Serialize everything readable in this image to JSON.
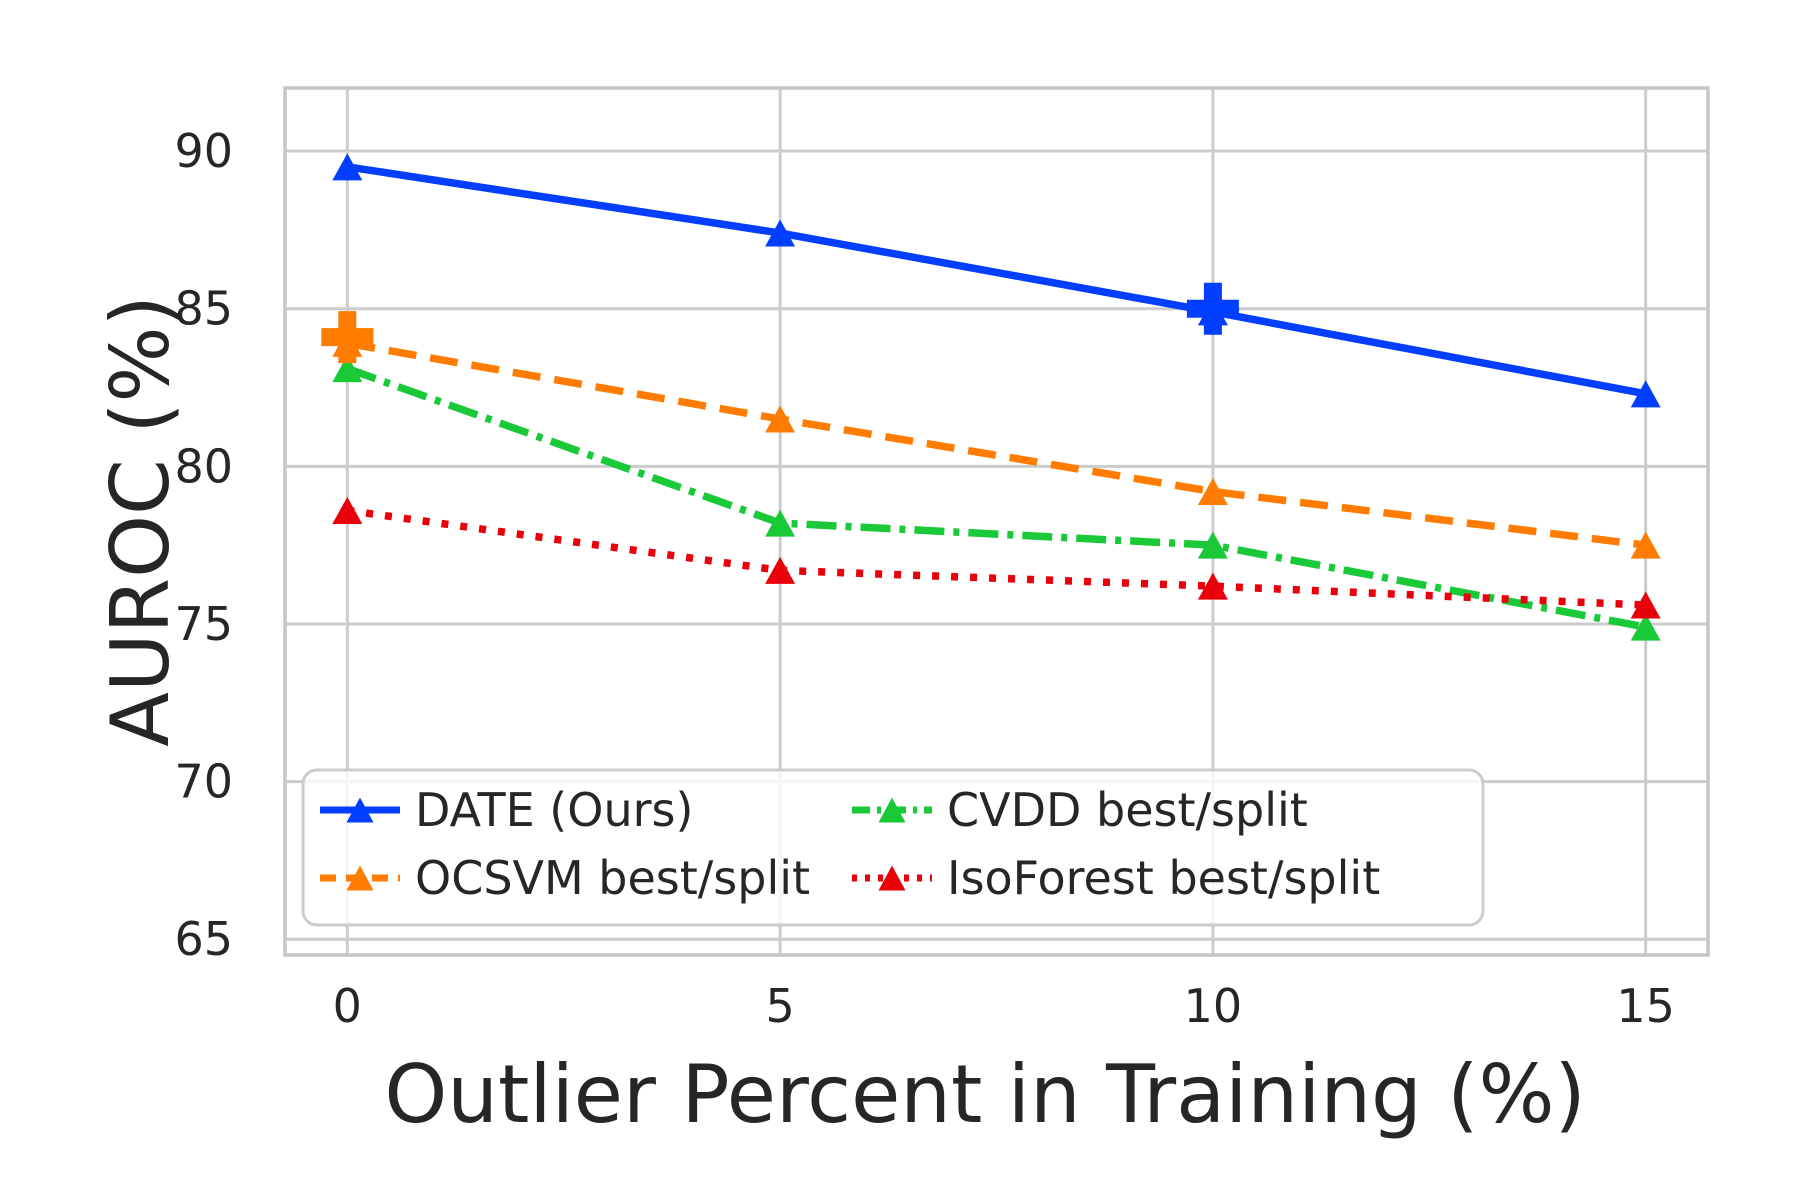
{
  "chart_data": {
    "type": "line",
    "title": "",
    "xlabel": "Outlier Percent in Training (%)",
    "ylabel": "AUROC (%)",
    "x": [
      0,
      5,
      10,
      15
    ],
    "xticks": [
      "0",
      "5",
      "10",
      "15"
    ],
    "yticks": [
      "65",
      "70",
      "75",
      "80",
      "85",
      "90"
    ],
    "xlim": [
      -0.72,
      15.72
    ],
    "ylim": [
      64.5,
      92.0
    ],
    "grid": true,
    "grid_color": "#cccccc",
    "spine_color": "#c6c6c6",
    "text_color": "#262626",
    "legend_position": "lower-left-two-columns",
    "series": [
      {
        "name": "DATE (Ours)",
        "color": "#023EFF",
        "linestyle": "solid",
        "marker": "triangle_up",
        "values": [
          89.5,
          87.4,
          84.9,
          82.3
        ]
      },
      {
        "name": "OCSVM best/split",
        "color": "#FF7C00",
        "linestyle": "dashed",
        "marker": "triangle_up",
        "values": [
          83.9,
          81.5,
          79.2,
          77.5
        ]
      },
      {
        "name": "CVDD best/split",
        "color": "#1AC938",
        "linestyle": "dashdot",
        "marker": "triangle_up",
        "values": [
          83.1,
          78.2,
          77.5,
          74.9
        ]
      },
      {
        "name": "IsoForest best/split",
        "color": "#E8000B",
        "linestyle": "dotted",
        "marker": "triangle_up",
        "values": [
          78.6,
          76.7,
          76.2,
          75.6
        ]
      }
    ],
    "annotations": [
      {
        "type": "plus_marker",
        "series": "OCSVM best/split",
        "x": 0,
        "y": 84.1,
        "color": "#FF7C00"
      },
      {
        "type": "plus_marker",
        "series": "DATE (Ours)",
        "x": 10,
        "y": 85.0,
        "color": "#023EFF"
      }
    ]
  }
}
